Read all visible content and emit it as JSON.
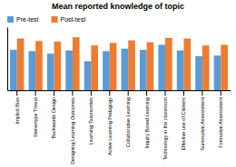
{
  "chart_data": {
    "type": "bar",
    "title": "Mean reported knowledge of topic",
    "categories": [
      "Implicit Bias",
      "Stereotype Threat",
      "Backwards Design",
      "Designing Learning Outcomes",
      "Learning Taxonomies",
      "Active Learning Pedagogy",
      "Collaborative Learning",
      "Inquiry Based Learning",
      "Technology in the classroom",
      "Effective use of Clickers",
      "Summative Assessment",
      "Formative Assessment"
    ],
    "series": [
      {
        "name": "Pre-test",
        "color": "#5b9bd5",
        "values": [
          3.2,
          3.1,
          2.9,
          3.15,
          2.3,
          3.1,
          3.3,
          3.2,
          3.6,
          3.15,
          2.7,
          2.75
        ]
      },
      {
        "name": "Post-test",
        "color": "#ed7d31",
        "values": [
          4.1,
          3.9,
          3.85,
          4.2,
          3.55,
          3.75,
          3.95,
          3.8,
          4.15,
          4.1,
          3.55,
          3.6
        ]
      }
    ],
    "ylim": [
      0,
      5
    ],
    "yticks": [],
    "tick_labels": "x",
    "legend": "top-left"
  }
}
